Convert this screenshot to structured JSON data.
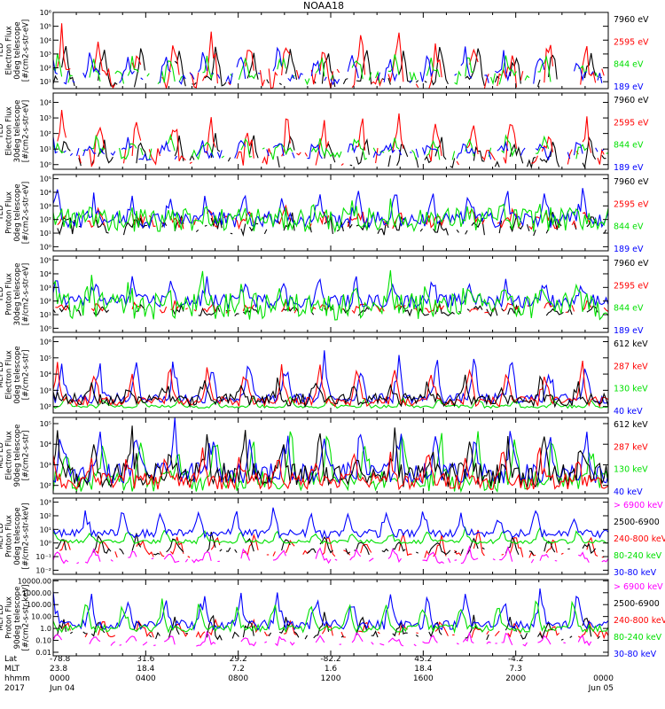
{
  "title": "NOAA18",
  "colors": {
    "black": "#000000",
    "red": "#ff0000",
    "green": "#00e000",
    "blue": "#0000ff",
    "magenta": "#ff00ff"
  },
  "chart_data": {
    "type": "line",
    "title": "NOAA18",
    "panels": [
      {
        "ylabel": [
          "TED",
          "Electron Flux",
          "0deg telescope",
          "[#/cm2-s-str-eV]"
        ],
        "yscale": "log",
        "ticks": [
          {
            "v": 1,
            "t": "10¹"
          },
          {
            "v": 2,
            "t": "10²"
          },
          {
            "v": 3,
            "t": "10³"
          },
          {
            "v": 4,
            "t": "10⁴"
          },
          {
            "v": 5,
            "t": "10⁵"
          },
          {
            "v": 6,
            "t": "10⁶"
          }
        ],
        "ylim": [
          0.5,
          6
        ],
        "series": [
          {
            "name": "7960 eV",
            "color": "black",
            "base": 1.0,
            "noise": 0.4,
            "peak": 3.8,
            "sparse": true
          },
          {
            "name": "2595 eV",
            "color": "red",
            "base": 1.2,
            "noise": 0.8,
            "peak": 4.5,
            "sparse": true
          },
          {
            "name": "844 eV",
            "color": "green",
            "base": 1.3,
            "noise": 0.5,
            "peak": 3.0,
            "sparse": true
          },
          {
            "name": "189 eV",
            "color": "blue",
            "base": 1.3,
            "noise": 0.5,
            "peak": 3.2,
            "sparse": true
          }
        ]
      },
      {
        "ylabel": [
          "TED",
          "Electron Flux",
          "30deg telescope",
          "[#/cm2-s-str-eV]"
        ],
        "yscale": "log",
        "ticks": [
          {
            "v": 1,
            "t": "10⁰"
          },
          {
            "v": 2,
            "t": "10¹"
          },
          {
            "v": 3,
            "t": "10²"
          },
          {
            "v": 4,
            "t": "10³"
          },
          {
            "v": 5,
            "t": "10⁴"
          }
        ],
        "ylim": [
          0.7,
          5.6
        ],
        "series": [
          {
            "name": "7960 eV",
            "color": "black",
            "base": 1.2,
            "noise": 0.4,
            "peak": 2.8,
            "sparse": true
          },
          {
            "name": "2595 eV",
            "color": "red",
            "base": 1.5,
            "noise": 0.6,
            "peak": 4.2,
            "sparse": true
          },
          {
            "name": "844 eV",
            "color": "green",
            "base": 1.7,
            "noise": 0.4,
            "peak": 2.8,
            "sparse": true
          },
          {
            "name": "189 eV",
            "color": "blue",
            "base": 1.7,
            "noise": 0.4,
            "peak": 2.6,
            "sparse": true
          }
        ]
      },
      {
        "ylabel": [
          "TED",
          "Proton Flux",
          "0deg telescope",
          "[#/cm2-s-str-eV]"
        ],
        "yscale": "log",
        "ticks": [
          {
            "v": 0,
            "t": "10⁰"
          },
          {
            "v": 1,
            "t": "10¹"
          },
          {
            "v": 2,
            "t": "10²"
          },
          {
            "v": 3,
            "t": "10³"
          },
          {
            "v": 4,
            "t": "10⁴"
          },
          {
            "v": 5,
            "t": "10⁵"
          }
        ],
        "ylim": [
          -0.3,
          5.3
        ],
        "series": [
          {
            "name": "7960 eV",
            "color": "black",
            "base": 1.4,
            "noise": 0.6,
            "peak": 2.2,
            "sparse": true
          },
          {
            "name": "2595 eV",
            "color": "red",
            "base": 1.8,
            "noise": 0.5,
            "peak": 2.6,
            "sparse": true
          },
          {
            "name": "189 eV",
            "color": "blue",
            "base": 2.0,
            "noise": 0.6,
            "peak": 4.3,
            "sparse": false
          },
          {
            "name": "844 eV",
            "color": "green",
            "base": 2.0,
            "noise": 0.9,
            "peak": 2.8,
            "sparse": false
          }
        ]
      },
      {
        "ylabel": [
          "TED",
          "Proton Flux",
          "30deg telescope",
          "[#/cm2-s-str-eV]"
        ],
        "yscale": "log",
        "ticks": [
          {
            "v": 0,
            "t": "10⁰"
          },
          {
            "v": 1,
            "t": "10¹"
          },
          {
            "v": 2,
            "t": "10²"
          },
          {
            "v": 3,
            "t": "10³"
          },
          {
            "v": 4,
            "t": "10⁴"
          },
          {
            "v": 5,
            "t": "10⁵"
          }
        ],
        "ylim": [
          -0.3,
          5.3
        ],
        "series": [
          {
            "name": "7960 eV",
            "color": "black",
            "base": 1.2,
            "noise": 0.3,
            "peak": 1.6,
            "sparse": true
          },
          {
            "name": "2595 eV",
            "color": "red",
            "base": 1.4,
            "noise": 0.3,
            "peak": 1.8,
            "sparse": true
          },
          {
            "name": "189 eV",
            "color": "blue",
            "base": 2.0,
            "noise": 0.5,
            "peak": 3.8,
            "sparse": false
          },
          {
            "name": "844 eV",
            "color": "green",
            "base": 1.6,
            "noise": 1.0,
            "peak": 3.4,
            "sparse": false
          }
        ]
      },
      {
        "ylabel": [
          "MEPED",
          "Electron Flux",
          "0deg telescope",
          "[#/cm2-s-str]"
        ],
        "yscale": "log",
        "ticks": [
          {
            "v": 2,
            "t": "10²"
          },
          {
            "v": 3,
            "t": "10³"
          },
          {
            "v": 4,
            "t": "10⁴"
          },
          {
            "v": 5,
            "t": "10⁵"
          },
          {
            "v": 6,
            "t": "10⁶"
          }
        ],
        "ylim": [
          1.6,
          6.3
        ],
        "series": [
          {
            "name": "130 keV",
            "color": "green",
            "base": 2.0,
            "noise": 0.1,
            "peak": 2.6,
            "sparse": false
          },
          {
            "name": "40 keV",
            "color": "blue",
            "base": 2.5,
            "noise": 0.3,
            "peak": 5.2,
            "sparse": false
          },
          {
            "name": "287 keV",
            "color": "red",
            "base": 2.3,
            "noise": 0.3,
            "peak": 4.8,
            "sparse": false
          },
          {
            "name": "612 keV",
            "color": "black",
            "base": 2.4,
            "noise": 0.4,
            "peak": 3.6,
            "sparse": false
          }
        ]
      },
      {
        "ylabel": [
          "MEPED",
          "Electron Flux",
          "90deg telescope",
          "[#/cm2-s-str]"
        ],
        "yscale": "log",
        "ticks": [
          {
            "v": 2,
            "t": "10²"
          },
          {
            "v": 3,
            "t": "10³"
          },
          {
            "v": 4,
            "t": "10⁴"
          },
          {
            "v": 5,
            "t": "10⁵"
          }
        ],
        "ylim": [
          1.6,
          5.3
        ],
        "series": [
          {
            "name": "130 keV",
            "color": "green",
            "base": 2.2,
            "noise": 0.5,
            "peak": 4.8,
            "sparse": false
          },
          {
            "name": "40 keV",
            "color": "blue",
            "base": 2.6,
            "noise": 0.5,
            "peak": 5.0,
            "sparse": false
          },
          {
            "name": "612 keV",
            "color": "black",
            "base": 2.5,
            "noise": 0.6,
            "peak": 4.4,
            "sparse": false
          },
          {
            "name": "287 keV",
            "color": "red",
            "base": 2.2,
            "noise": 0.4,
            "peak": 3.8,
            "sparse": false
          }
        ]
      },
      {
        "ylabel": [
          "MEPED",
          "Proton Flux",
          "0deg telescope",
          "[#/cm2-s-str-keV]"
        ],
        "yscale": "log",
        "ticks": [
          {
            "v": -2,
            "t": "10⁻²"
          },
          {
            "v": -1,
            "t": "10⁻¹"
          },
          {
            "v": 0,
            "t": "10⁰"
          },
          {
            "v": 1,
            "t": "10¹"
          },
          {
            "v": 2,
            "t": "10²"
          },
          {
            "v": 3,
            "t": "10³"
          }
        ],
        "ylim": [
          -2.3,
          3.3
        ],
        "series": [
          {
            "name": "240-800 keV",
            "color": "red",
            "base": -0.8,
            "noise": 0.3,
            "peak": 0.6,
            "sparse": true
          },
          {
            "name": "2500-6900",
            "color": "black",
            "base": -0.6,
            "noise": 0.3,
            "peak": 0.6,
            "sparse": true
          },
          {
            "name": "> 6900 keV",
            "color": "magenta",
            "base": -1.3,
            "noise": 0.2,
            "peak": -0.4,
            "sparse": true
          },
          {
            "name": "80-240 keV",
            "color": "green",
            "base": 0.1,
            "noise": 0.15,
            "peak": 1.0,
            "sparse": false
          },
          {
            "name": "30-80 keV",
            "color": "blue",
            "base": 0.7,
            "noise": 0.3,
            "peak": 2.6,
            "sparse": false
          }
        ]
      },
      {
        "ylabel": [
          "MEPED",
          "Proton Flux",
          "90deg telescope",
          "[#/cm2-s-str-keV]"
        ],
        "yscale": "log",
        "ticks": [
          {
            "v": -2,
            "t": "0.01"
          },
          {
            "v": -1,
            "t": "0.10"
          },
          {
            "v": 0,
            "t": "1.0"
          },
          {
            "v": 1,
            "t": "10.00"
          },
          {
            "v": 2,
            "t": "100.00"
          },
          {
            "v": 3,
            "t": "1000.00"
          },
          {
            "v": 4,
            "t": "10000.00"
          }
        ],
        "ylim": [
          -2.3,
          4.1
        ],
        "series": [
          {
            "name": "240-800 keV",
            "color": "red",
            "base": -0.5,
            "noise": 0.3,
            "peak": 0.8,
            "sparse": true
          },
          {
            "name": "2500-6900",
            "color": "black",
            "base": -0.6,
            "noise": 0.4,
            "peak": 1.2,
            "sparse": true
          },
          {
            "name": "> 6900 keV",
            "color": "magenta",
            "base": -1.3,
            "noise": 0.2,
            "peak": -0.4,
            "sparse": true
          },
          {
            "name": "30-80 keV",
            "color": "blue",
            "base": 0.3,
            "noise": 0.4,
            "peak": 3.3,
            "sparse": false
          },
          {
            "name": "80-240 keV",
            "color": "green",
            "base": 0.0,
            "noise": 0.3,
            "peak": 2.5,
            "sparse": false
          }
        ]
      }
    ],
    "legends": [
      [
        {
          "text": "7960 eV",
          "color": "black"
        },
        {
          "text": "2595 eV",
          "color": "red"
        },
        {
          "text": "844 eV",
          "color": "green"
        },
        {
          "text": "189 eV",
          "color": "blue"
        }
      ],
      [
        {
          "text": "7960 eV",
          "color": "black"
        },
        {
          "text": "2595 eV",
          "color": "red"
        },
        {
          "text": "844 eV",
          "color": "green"
        },
        {
          "text": "189 eV",
          "color": "blue"
        }
      ],
      [
        {
          "text": "7960 eV",
          "color": "black"
        },
        {
          "text": "2595 eV",
          "color": "red"
        },
        {
          "text": "844 eV",
          "color": "green"
        },
        {
          "text": "189 eV",
          "color": "blue"
        }
      ],
      [
        {
          "text": "7960 eV",
          "color": "black"
        },
        {
          "text": "2595 eV",
          "color": "red"
        },
        {
          "text": "844 eV",
          "color": "green"
        },
        {
          "text": "189 eV",
          "color": "blue"
        }
      ],
      [
        {
          "text": "612 keV",
          "color": "black"
        },
        {
          "text": "287 keV",
          "color": "red"
        },
        {
          "text": "130 keV",
          "color": "green"
        },
        {
          "text": "40 keV",
          "color": "blue"
        }
      ],
      [
        {
          "text": "612 keV",
          "color": "black"
        },
        {
          "text": "287 keV",
          "color": "red"
        },
        {
          "text": "130 keV",
          "color": "green"
        },
        {
          "text": "40 keV",
          "color": "blue"
        }
      ],
      [
        {
          "text": "> 6900 keV",
          "color": "magenta"
        },
        {
          "text": "2500-6900",
          "color": "black"
        },
        {
          "text": "240-800 keV",
          "color": "red"
        },
        {
          "text": "80-240 keV",
          "color": "green"
        },
        {
          "text": "30-80 keV",
          "color": "blue"
        }
      ],
      [
        {
          "text": "> 6900 keV",
          "color": "magenta"
        },
        {
          "text": "2500-6900",
          "color": "black"
        },
        {
          "text": "240-800 keV",
          "color": "red"
        },
        {
          "text": "80-240 keV",
          "color": "green"
        },
        {
          "text": "30-80 keV",
          "color": "blue"
        }
      ]
    ],
    "x_axis": {
      "range_hours": [
        0,
        24
      ],
      "rows": [
        "Lat",
        "MLT",
        "hhmm",
        "2017"
      ],
      "ticks": [
        {
          "hour": 0,
          "values": [
            "-78.8",
            "23.8",
            "0000",
            "Jun 04"
          ]
        },
        {
          "hour": 4,
          "values": [
            "31.6",
            "18.4",
            "0400",
            ""
          ]
        },
        {
          "hour": 8,
          "values": [
            "29.2",
            "7.2",
            "0800",
            ""
          ]
        },
        {
          "hour": 12,
          "values": [
            "-82.2",
            "1.6",
            "1200",
            ""
          ]
        },
        {
          "hour": 16,
          "values": [
            "45.2",
            "18.4",
            "1600",
            ""
          ]
        },
        {
          "hour": 20,
          "values": [
            "-4.2",
            "7.3",
            "2000",
            ""
          ]
        },
        {
          "hour": 24,
          "values": [
            "",
            "",
            "0000",
            "Jun 05"
          ]
        }
      ]
    },
    "grid": false,
    "legend_placement": "right of each panel"
  }
}
